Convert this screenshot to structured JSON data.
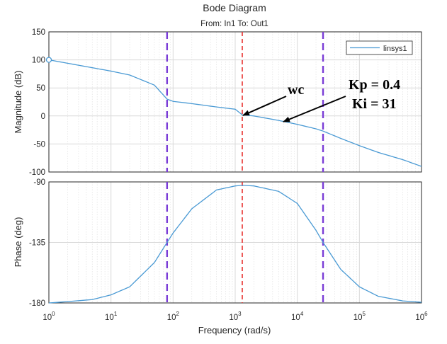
{
  "chart_data": {
    "type": "line",
    "title": "Bode Diagram",
    "subtitle": "From: In1  To: Out1",
    "xlabel": "Frequency  (rad/s)",
    "x_scale": "log",
    "xlim": [
      1,
      1000000
    ],
    "x_ticks": [
      {
        "base": "10",
        "exp": "0"
      },
      {
        "base": "10",
        "exp": "1"
      },
      {
        "base": "10",
        "exp": "2"
      },
      {
        "base": "10",
        "exp": "3"
      },
      {
        "base": "10",
        "exp": "4"
      },
      {
        "base": "10",
        "exp": "5"
      },
      {
        "base": "10",
        "exp": "6"
      }
    ],
    "grid": true,
    "legend": {
      "position": "top-right",
      "entries": [
        "linsys1"
      ]
    },
    "line_color": "#4a9ad4",
    "panels": [
      {
        "ylabel": "Magnitude (dB)",
        "ylim": [
          -100,
          150
        ],
        "yticks": [
          "150",
          "100",
          "50",
          "0",
          "-50",
          "-100"
        ],
        "series": [
          {
            "name": "linsys1",
            "x": [
              1,
              2,
              5,
              10,
              20,
              50,
              80,
              100,
              200,
              500,
              1000,
              1300,
              2000,
              5000,
              10000,
              20000,
              26000,
              50000,
              100000,
              200000,
              500000,
              1000000
            ],
            "y": [
              100,
              94,
              86,
              80,
              73,
              55,
              30,
              26,
              22,
              16,
              12,
              2,
              0,
              -8,
              -15,
              -23,
              -27,
              -40,
              -53,
              -65,
              -78,
              -90
            ]
          }
        ]
      },
      {
        "ylabel": "Phase (deg)",
        "ylim": [
          -180,
          -90
        ],
        "yticks": [
          "-90",
          "-135",
          "-180"
        ],
        "series": [
          {
            "name": "linsys1",
            "x": [
              1,
              2,
              5,
              10,
              20,
              50,
              80,
              100,
              200,
              500,
              1000,
              1300,
              2000,
              5000,
              10000,
              20000,
              26000,
              50000,
              100000,
              200000,
              500000,
              1000000
            ],
            "y": [
              -180,
              -179,
              -177.5,
              -174,
              -168,
              -150,
              -135,
              -128,
              -110,
              -96,
              -93,
              -92.5,
              -93,
              -97,
              -106,
              -126,
              -135,
              -155,
              -168,
              -175,
              -178.5,
              -179.5
            ]
          }
        ]
      }
    ],
    "vertical_markers": [
      {
        "x": 80,
        "style": "dashed",
        "color": "#7a3cd6"
      },
      {
        "x": 26000,
        "style": "dashed",
        "color": "#7a3cd6"
      },
      {
        "x": 1300,
        "style": "dashed",
        "color": "#e8302e"
      }
    ],
    "annotations": [
      {
        "text": "wc"
      },
      {
        "text": "Kp = 0.4"
      },
      {
        "text": "Ki = 31"
      }
    ]
  }
}
